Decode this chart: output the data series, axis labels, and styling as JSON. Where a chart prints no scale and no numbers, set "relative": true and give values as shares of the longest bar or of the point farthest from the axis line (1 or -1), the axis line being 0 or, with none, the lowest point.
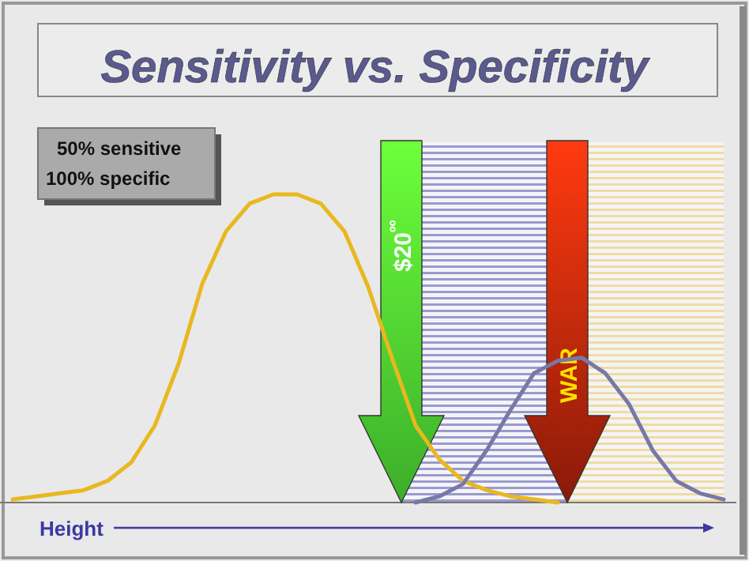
{
  "chart_data": {
    "type": "line",
    "title": "Sensitivity vs. Specificity",
    "xlabel": "Height",
    "relative": true,
    "tick_labels": false,
    "marker": "none",
    "categories": [
      null,
      null,
      null,
      null,
      null,
      null,
      null,
      null,
      null,
      null,
      null,
      null,
      null,
      null,
      null,
      null,
      null,
      null,
      null,
      null,
      null,
      null,
      null,
      null,
      null,
      null,
      null,
      null,
      null,
      null,
      null
    ],
    "series": [
      {
        "color": "#e8b820",
        "values": [
          0.01,
          0.02,
          0.03,
          0.04,
          0.07,
          0.13,
          0.25,
          0.45,
          0.71,
          0.88,
          0.97,
          1.0,
          1.0,
          0.97,
          0.88,
          0.7,
          0.47,
          0.25,
          0.14,
          0.07,
          0.04,
          0.02,
          0.01,
          0.0,
          null,
          null,
          null,
          null,
          null,
          null,
          null
        ]
      },
      {
        "color": "#7878a8",
        "values": [
          null,
          null,
          null,
          null,
          null,
          null,
          null,
          null,
          null,
          null,
          null,
          null,
          null,
          null,
          null,
          null,
          null,
          0.0,
          0.02,
          0.06,
          0.17,
          0.3,
          0.42,
          0.46,
          0.47,
          0.42,
          0.32,
          0.17,
          0.07,
          0.03,
          0.01
        ]
      }
    ],
    "annotations": [
      "$20$^{ºº}$",
      "WAR",
      "50% sensitive",
      "100% specific"
    ]
  }
}
